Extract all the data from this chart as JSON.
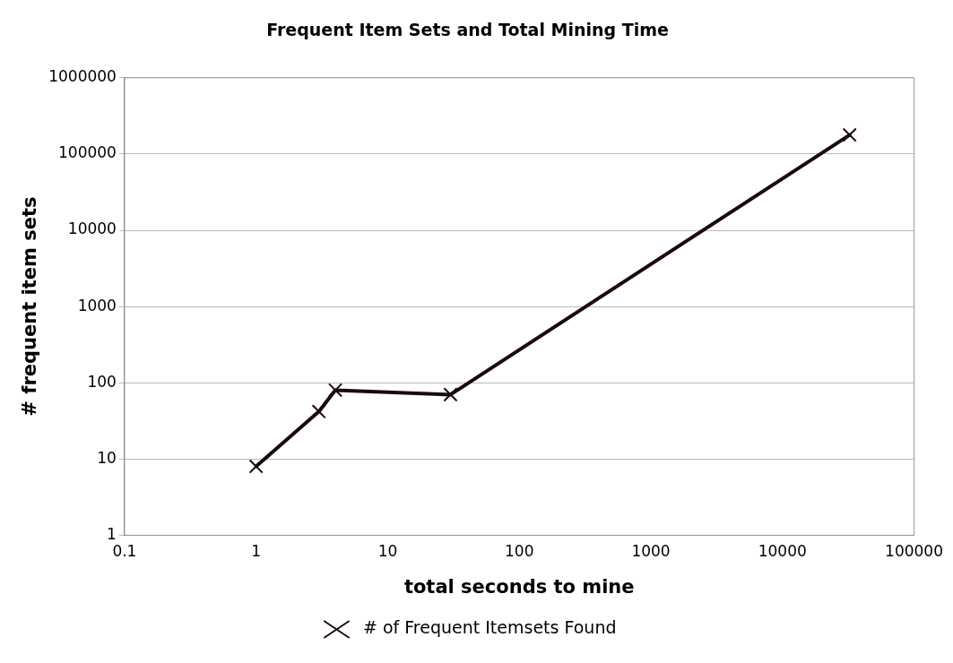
{
  "chart_data": {
    "type": "line",
    "title": "Frequent Item Sets and Total Mining Time",
    "xlabel": "total seconds to mine",
    "ylabel": "# frequent item sets",
    "x": [
      1,
      3,
      4,
      30,
      32400
    ],
    "series": [
      {
        "name": "# of Frequent Itemsets Found",
        "color": "#1a0a0a",
        "values": [
          8,
          42,
          80,
          70,
          178000
        ]
      }
    ],
    "log": "xy",
    "xlim": [
      0.1,
      100000
    ],
    "xticks": [
      0.1,
      1,
      10,
      100,
      1000,
      10000,
      100000
    ],
    "ylim": [
      1,
      1000000
    ],
    "yticks": [
      1,
      10,
      100,
      1000,
      10000,
      100000,
      1000000
    ],
    "grid": "y",
    "legend": "bottom",
    "marker": "cross",
    "line_style": "solid"
  }
}
